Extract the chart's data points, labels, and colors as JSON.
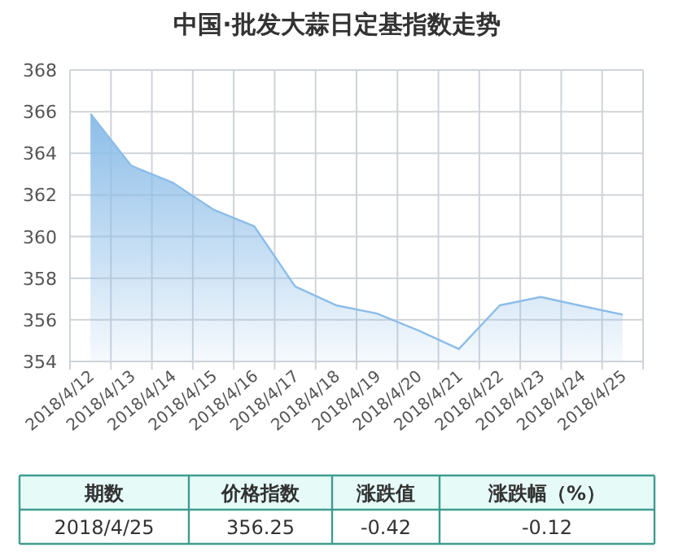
{
  "chart_data": {
    "type": "area",
    "title": "中国·批发大蒜日定基指数走势",
    "categories": [
      "2018/4/12",
      "2018/4/13",
      "2018/4/14",
      "2018/4/15",
      "2018/4/16",
      "2018/4/17",
      "2018/4/18",
      "2018/4/19",
      "2018/4/20",
      "2018/4/21",
      "2018/4/22",
      "2018/4/23",
      "2018/4/24",
      "2018/4/25"
    ],
    "values": [
      365.9,
      363.4,
      362.6,
      361.3,
      360.5,
      357.6,
      356.7,
      356.3,
      355.5,
      354.6,
      356.7,
      357.1,
      356.67,
      356.25
    ],
    "color": "#8cbde8",
    "ylim": [
      354,
      368
    ],
    "yticks": [
      354,
      356,
      358,
      360,
      362,
      364,
      366,
      368
    ],
    "grid": true,
    "annotations": [
      "期数",
      "价格指数",
      "涨跌值",
      "涨跌幅（%）",
      "2018/4/25",
      "356.25",
      "-0.42",
      "-0.12"
    ]
  }
}
